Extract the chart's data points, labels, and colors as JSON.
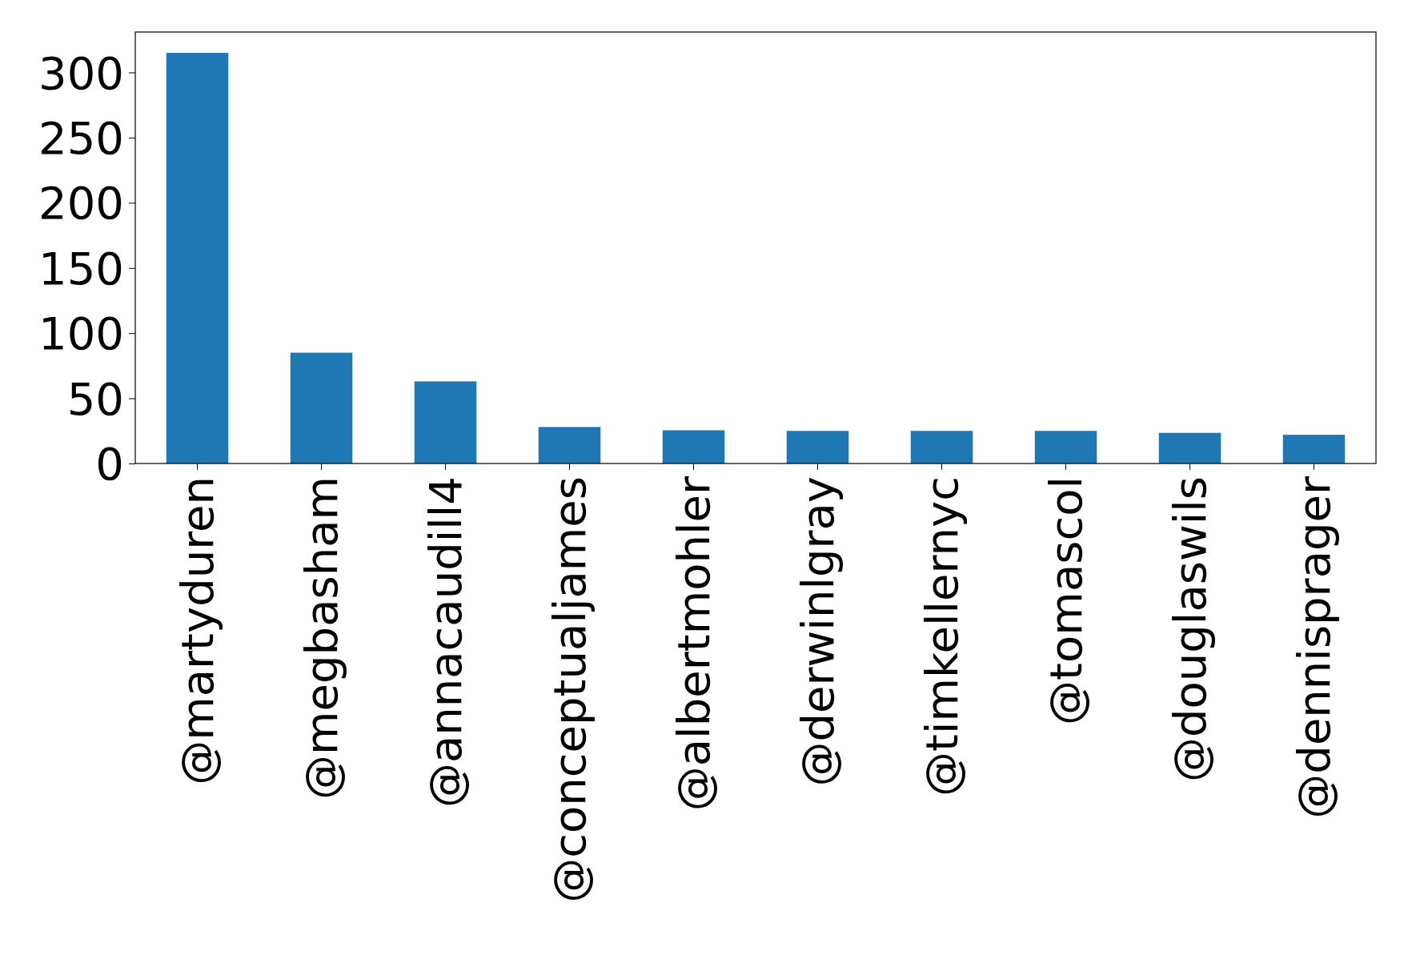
{
  "chart_data": {
    "type": "bar",
    "categories": [
      "@martyduren",
      "@megbasham",
      "@annacaudill4",
      "@conceptualjames",
      "@albertmohler",
      "@derwinlgray",
      "@timkellernyc",
      "@tomascol",
      "@douglaswils",
      "@dennisprager"
    ],
    "values": [
      315,
      85,
      63,
      28,
      25.5,
      25,
      25,
      25,
      23.5,
      22
    ],
    "color": "#1f77b4",
    "ylim": [
      0,
      331
    ],
    "yticks": [
      0,
      50,
      100,
      150,
      200,
      250,
      300
    ]
  }
}
